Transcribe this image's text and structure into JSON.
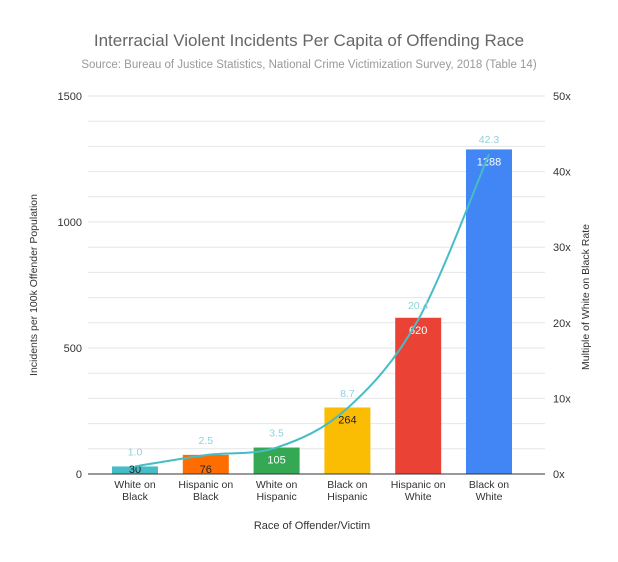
{
  "chart_data": {
    "type": "bar",
    "title": "Interracial Violent Incidents Per Capita of Offending Race",
    "subtitle": "Source: Bureau of Justice Statistics, National Crime Victimization Survey, 2018 (Table 14)",
    "xlabel": "Race of Offender/Victim",
    "ylabel": "Incidents per 100k Offender Population",
    "y2label": "Multiple of White on Black Rate",
    "ylim": [
      0,
      1500
    ],
    "y2lim": [
      0,
      50
    ],
    "yticks": [
      "0",
      "500",
      "1000",
      "1500"
    ],
    "y2ticks": [
      "0x",
      "10x",
      "20x",
      "30x",
      "40x",
      "50x"
    ],
    "grid": true,
    "categories": [
      [
        "White on",
        "Black"
      ],
      [
        "Hispanic on",
        "Black"
      ],
      [
        "White on",
        "Hispanic"
      ],
      [
        "Black on",
        "Hispanic"
      ],
      [
        "Hispanic on",
        "White"
      ],
      [
        "Black on",
        "White"
      ]
    ],
    "series": [
      {
        "type": "bar",
        "axis": "left",
        "values": [
          30,
          76,
          105,
          264,
          620,
          1288
        ],
        "labels": [
          "30",
          "76",
          "105",
          "264",
          "620",
          "1288"
        ],
        "colors": [
          "#46bdc6",
          "#ff6d01",
          "#34a853",
          "#fbbc04",
          "#ea4335",
          "#4285f4"
        ],
        "label_colors": [
          "#222222",
          "#222222",
          "#ffffff",
          "#222222",
          "#ffffff",
          "#ffffff"
        ]
      },
      {
        "type": "line",
        "axis": "right",
        "smooth": true,
        "values": [
          1.0,
          2.5,
          3.5,
          8.7,
          20.4,
          42.3
        ],
        "labels": [
          "1.0",
          "2.5",
          "3.5",
          "8.7",
          "20.4",
          "42.3"
        ],
        "color": "#46bdc6"
      }
    ]
  }
}
